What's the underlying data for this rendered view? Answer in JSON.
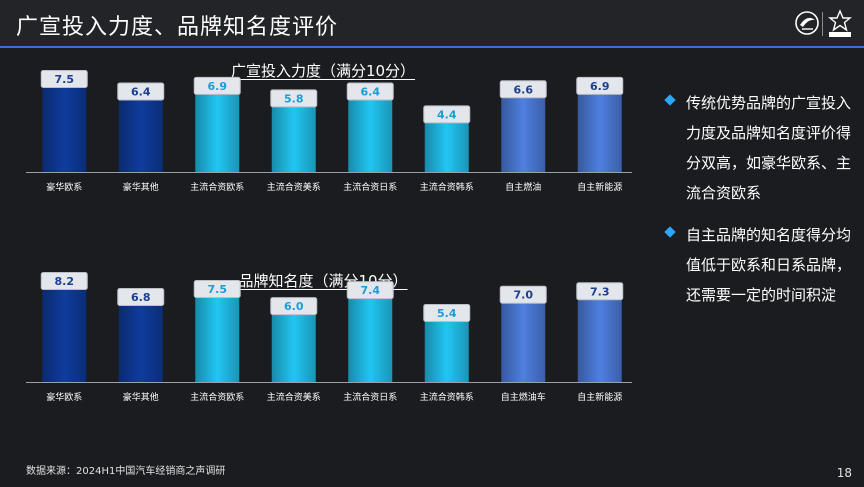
{
  "slide": {
    "title": "广宣投入力度、品牌知名度评价",
    "source": "数据来源：2024H1中国汽车经销商之声调研",
    "page_number": "18"
  },
  "bullets": [
    "传统优势品牌的广宣投入力度及品牌知名度评价得分双高，如豪华欧系、主流合资欧系",
    "自主品牌的知名度得分均值低于欧系和日系品牌，还需要一定的时间积淀"
  ],
  "colors": {
    "accent_blue": "#3b6fd1",
    "dark_navy": "#0f3c9e",
    "cyan": "#21c6f2",
    "periwinkle": "#4f7fe0",
    "bullet_icon": "#2aa8ff"
  },
  "icons": [
    "company-logo-icon",
    "cadc-logo-icon",
    "diamond-bullet-icon"
  ],
  "chart_data": [
    {
      "type": "bar",
      "title": "广宣投入力度（满分10分）",
      "categories": [
        "豪华欧系",
        "豪华其他",
        "主流合资欧系",
        "主流合资美系",
        "主流合资日系",
        "主流合资韩系",
        "自主燃油",
        "自主新能源"
      ],
      "values": [
        7.5,
        6.4,
        6.9,
        5.8,
        6.4,
        4.4,
        6.6,
        6.9
      ],
      "bar_colors": [
        "#0f3c9e",
        "#0f3c9e",
        "#21c6f2",
        "#21c6f2",
        "#21c6f2",
        "#21c6f2",
        "#4f7fe0",
        "#4f7fe0"
      ],
      "ylim": [
        0,
        10
      ],
      "xlabel": "",
      "ylabel": "",
      "grid": false,
      "legend": "none"
    },
    {
      "type": "bar",
      "title": "品牌知名度（满分10分）",
      "categories": [
        "豪华欧系",
        "豪华其他",
        "主流合资欧系",
        "主流合资美系",
        "主流合资日系",
        "主流合资韩系",
        "自主燃油车",
        "自主新能源"
      ],
      "values": [
        8.2,
        6.8,
        7.5,
        6.0,
        7.4,
        5.4,
        7.0,
        7.3
      ],
      "bar_colors": [
        "#0f3c9e",
        "#0f3c9e",
        "#21c6f2",
        "#21c6f2",
        "#21c6f2",
        "#21c6f2",
        "#4f7fe0",
        "#4f7fe0"
      ],
      "ylim": [
        0,
        10
      ],
      "xlabel": "",
      "ylabel": "",
      "grid": false,
      "legend": "none"
    }
  ]
}
